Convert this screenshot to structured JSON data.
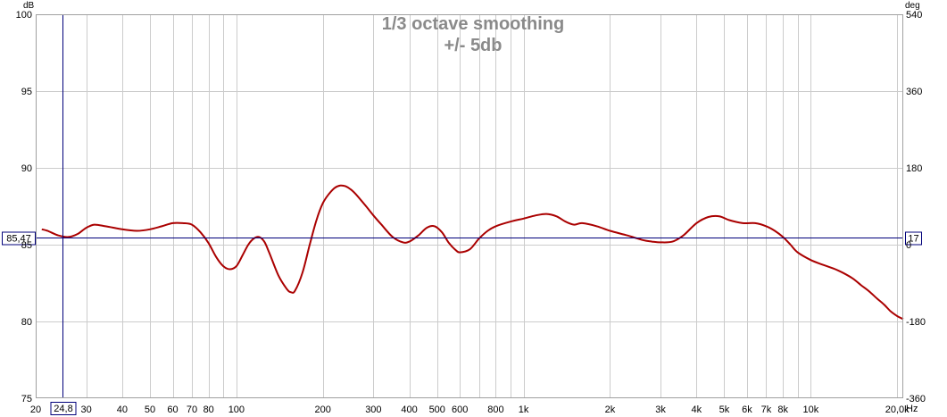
{
  "chart_data": {
    "type": "line",
    "title": "1/3 octave smoothing",
    "subtitle": "+/- 5db",
    "xscale": "log",
    "xlim": [
      20,
      21000
    ],
    "ylim": [
      75,
      100
    ],
    "y2lim": [
      -360,
      540
    ],
    "ylabel": "dB",
    "y2label": "deg",
    "xunit": "Hz",
    "grid": true,
    "x_ticks": [
      {
        "v": 20,
        "label": "20"
      },
      {
        "v": 30,
        "label": "30"
      },
      {
        "v": 40,
        "label": "40"
      },
      {
        "v": 50,
        "label": "50"
      },
      {
        "v": 60,
        "label": "60"
      },
      {
        "v": 70,
        "label": "70"
      },
      {
        "v": 80,
        "label": "80"
      },
      {
        "v": 100,
        "label": "100"
      },
      {
        "v": 200,
        "label": "200"
      },
      {
        "v": 300,
        "label": "300"
      },
      {
        "v": 400,
        "label": "400"
      },
      {
        "v": 500,
        "label": "500"
      },
      {
        "v": 600,
        "label": "600"
      },
      {
        "v": 800,
        "label": "800"
      },
      {
        "v": 1000,
        "label": "1k"
      },
      {
        "v": 2000,
        "label": "2k"
      },
      {
        "v": 3000,
        "label": "3k"
      },
      {
        "v": 4000,
        "label": "4k"
      },
      {
        "v": 5000,
        "label": "5k"
      },
      {
        "v": 6000,
        "label": "6k"
      },
      {
        "v": 7000,
        "label": "7k"
      },
      {
        "v": 8000,
        "label": "8k"
      },
      {
        "v": 10000,
        "label": "10k"
      },
      {
        "v": 20000,
        "label": "20,0k"
      }
    ],
    "minor_x_grid": [
      90,
      700,
      900,
      9000
    ],
    "y_ticks": [
      75,
      80,
      85,
      90,
      95,
      100
    ],
    "y2_ticks": [
      {
        "v": -360,
        "label": "-360"
      },
      {
        "v": -180,
        "label": "-180"
      },
      {
        "v": 0,
        "label": "0"
      },
      {
        "v": 180,
        "label": "180"
      },
      {
        "v": 360,
        "label": "360"
      },
      {
        "v": 540,
        "label": "540"
      }
    ],
    "cursor": {
      "x": 24.8,
      "x_label": "24,8",
      "y": 85.47,
      "y_label": "85,47",
      "y2_label": "17"
    },
    "colors": {
      "curve": "#aa0000",
      "cursor": "#00007a",
      "grid": "#cccccc",
      "title": "#8a8a8a"
    },
    "series": [
      {
        "x": [
          21,
          22,
          24,
          26,
          28,
          30,
          32,
          35,
          40,
          45,
          50,
          55,
          60,
          65,
          70,
          75,
          80,
          85,
          90,
          95,
          100,
          105,
          110,
          115,
          120,
          125,
          130,
          140,
          150,
          155,
          160,
          170,
          180,
          190,
          200,
          210,
          220,
          230,
          240,
          250,
          260,
          280,
          300,
          320,
          350,
          380,
          400,
          430,
          460,
          490,
          520,
          550,
          580,
          600,
          650,
          700,
          750,
          800,
          900,
          1000,
          1100,
          1200,
          1300,
          1400,
          1500,
          1600,
          1800,
          2000,
          2300,
          2600,
          2800,
          3000,
          3300,
          3600,
          4000,
          4400,
          4800,
          5200,
          5800,
          6400,
          7000,
          7500,
          8000,
          8500,
          9000,
          10000,
          11000,
          12000,
          13000,
          14000,
          15000,
          16000,
          17000,
          18000,
          19000,
          20000,
          21000
        ],
        "y": [
          86.0,
          85.9,
          85.6,
          85.5,
          85.7,
          86.1,
          86.3,
          86.2,
          86.0,
          85.9,
          86.0,
          86.2,
          86.4,
          86.4,
          86.3,
          85.8,
          85.1,
          84.2,
          83.6,
          83.4,
          83.6,
          84.3,
          85.0,
          85.4,
          85.5,
          85.2,
          84.5,
          83.0,
          82.1,
          81.9,
          82.0,
          83.2,
          85.0,
          86.6,
          87.7,
          88.3,
          88.7,
          88.85,
          88.8,
          88.6,
          88.3,
          87.6,
          86.9,
          86.3,
          85.5,
          85.15,
          85.2,
          85.6,
          86.1,
          86.2,
          85.8,
          85.1,
          84.65,
          84.5,
          84.7,
          85.4,
          85.9,
          86.2,
          86.5,
          86.7,
          86.9,
          87.0,
          86.85,
          86.5,
          86.3,
          86.4,
          86.2,
          85.9,
          85.6,
          85.3,
          85.2,
          85.15,
          85.2,
          85.6,
          86.4,
          86.8,
          86.85,
          86.6,
          86.4,
          86.4,
          86.2,
          85.9,
          85.5,
          85.0,
          84.5,
          84.0,
          83.7,
          83.45,
          83.15,
          82.8,
          82.35,
          81.95,
          81.5,
          81.1,
          80.65,
          80.35,
          80.15
        ]
      }
    ]
  }
}
